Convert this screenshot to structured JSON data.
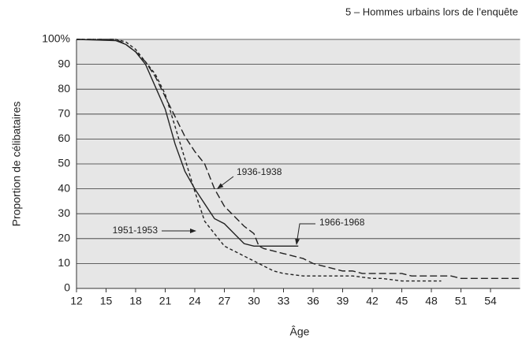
{
  "chart_data": {
    "type": "line",
    "subtitle": "5 – Hommes urbains lors de l’enquête",
    "x_label": "Âge",
    "y_label": "Proportion de célibataires",
    "xlim": [
      12,
      57
    ],
    "xticks": [
      12,
      15,
      18,
      21,
      24,
      27,
      30,
      33,
      36,
      39,
      42,
      45,
      48,
      51,
      54
    ],
    "ylim": [
      0,
      100
    ],
    "yticks": [
      0,
      10,
      20,
      30,
      40,
      50,
      60,
      70,
      80,
      90,
      {
        "value": 100,
        "label": "100%"
      }
    ],
    "grid": true,
    "series": [
      {
        "name": "1966-1968",
        "color": "#222222",
        "dash": "solid",
        "x": [
          12,
          16,
          17,
          18,
          19,
          20,
          21,
          22,
          23,
          24,
          25,
          26,
          27,
          28,
          29,
          30,
          31,
          32,
          33,
          34.5
        ],
        "values": [
          100,
          99.5,
          98,
          95,
          90,
          81,
          72,
          58,
          47,
          40,
          34,
          28,
          26,
          22,
          18,
          17,
          17,
          17,
          17,
          17
        ]
      },
      {
        "name": "1936-1938",
        "color": "#222222",
        "dash": "long",
        "x": [
          12,
          16,
          17,
          18,
          19,
          20,
          21,
          22,
          23,
          24,
          25,
          26,
          27,
          28,
          29,
          30,
          30.5,
          31,
          32,
          33,
          34,
          35,
          36,
          37,
          38,
          39,
          40,
          41,
          42,
          43,
          44,
          45,
          46,
          47,
          48,
          49,
          50,
          51,
          52,
          53,
          54,
          55,
          56,
          57
        ],
        "values": [
          100,
          100,
          98,
          95,
          91,
          85,
          77,
          69,
          61,
          55,
          50,
          40,
          33,
          29,
          25,
          22,
          17,
          16,
          15,
          14,
          13,
          12,
          10,
          9,
          8,
          7,
          7,
          6,
          6,
          6,
          6,
          6,
          5,
          5,
          5,
          5,
          5,
          4,
          4,
          4,
          4,
          4,
          4,
          4
        ]
      },
      {
        "name": "1951-1953",
        "color": "#222222",
        "dash": "short",
        "x": [
          12,
          16,
          17,
          18,
          19,
          20,
          21,
          22,
          23,
          24,
          25,
          26,
          27,
          28,
          29,
          30,
          31,
          32,
          33,
          34,
          35,
          36,
          37,
          38,
          39,
          40,
          41,
          42,
          43,
          44,
          45,
          46,
          47,
          48,
          49
        ],
        "values": [
          100,
          100,
          99,
          96,
          91,
          86,
          78,
          65,
          52,
          39,
          27,
          22,
          17,
          15,
          13,
          11,
          9,
          7,
          6,
          5.5,
          5,
          5,
          5,
          5,
          5,
          5,
          4.5,
          4,
          4,
          3.5,
          3,
          3,
          3,
          3,
          3
        ]
      }
    ]
  }
}
